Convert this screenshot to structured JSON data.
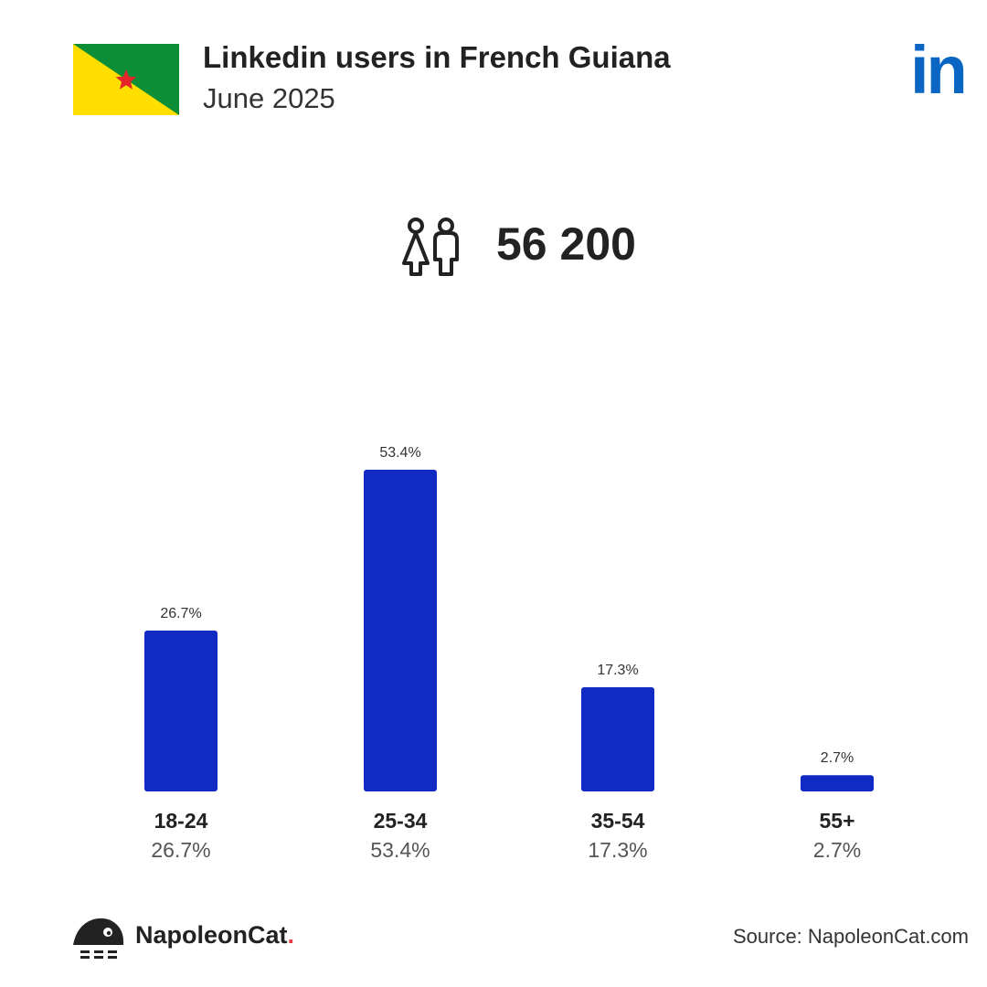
{
  "header": {
    "title": "Linkedin users in French Guiana",
    "subtitle": "June 2025"
  },
  "flag_colors": {
    "green": "#0b8e36",
    "yellow": "#ffde00",
    "star": "#e4262c"
  },
  "stats": {
    "total_users": "56 200"
  },
  "icons": {
    "users": "people-icon",
    "platform": "linkedin-icon",
    "brand": "napoleoncat-icon"
  },
  "colors": {
    "bar": "#102bc3",
    "accent": "#0a66c2"
  },
  "chart_data": {
    "type": "bar",
    "categories": [
      "18-24",
      "25-34",
      "35-54",
      "55+"
    ],
    "values": [
      26.7,
      53.4,
      17.3,
      2.7
    ],
    "value_labels": [
      "26.7%",
      "53.4%",
      "17.3%",
      "2.7%"
    ],
    "ylim": [
      0,
      53.4
    ]
  },
  "footer": {
    "brand_name": "NapoleonCat",
    "brand_dot": ".",
    "source": "Source: NapoleonCat.com"
  }
}
